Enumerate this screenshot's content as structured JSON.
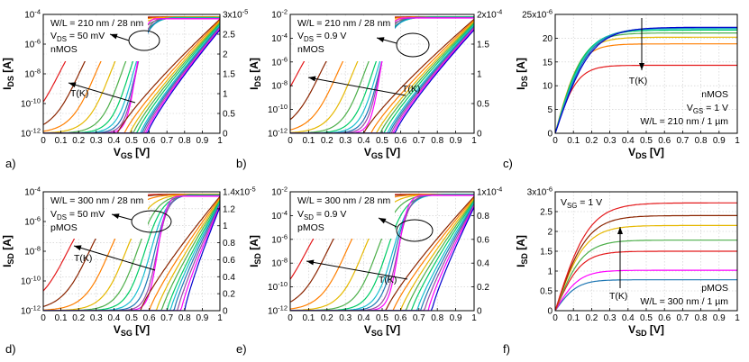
{
  "chart_data": [
    {
      "panel": "a)",
      "type": "line",
      "xlabel": "V_GS [V]",
      "ylabel_left": "I_DS [A]",
      "left_ticks": [
        "10^-4",
        "10^-6",
        "10^-8",
        "10^-10",
        "10^-12"
      ],
      "right_ticks": [
        "3x10^-5",
        "2.5",
        "2",
        "1.5",
        "1",
        "0.5",
        "0"
      ],
      "xlim": [
        0,
        1
      ],
      "x_ticks": [
        "0",
        "0.1",
        "0.2",
        "0.3",
        "0.4",
        "0.5",
        "0.6",
        "0.7",
        "0.8",
        "0.9",
        "1"
      ],
      "annotations": [
        "W/L = 210 nm / 28 nm",
        "V_DS = 50 mV",
        "nMOS",
        "T(K)"
      ],
      "log_curves_vth": [
        0.0,
        0.12,
        0.22,
        0.31,
        0.38,
        0.43,
        0.46,
        0.48,
        0.49,
        0.495
      ],
      "lin_curves_vth": [
        0.42,
        0.46,
        0.49,
        0.51,
        0.53,
        0.55,
        0.56,
        0.57,
        0.58,
        0.59
      ]
    },
    {
      "panel": "b)",
      "type": "line",
      "xlabel": "V_GS [V]",
      "ylabel_left": "I_DS [A]",
      "left_ticks": [
        "10^-2",
        "10^-4",
        "10^-6",
        "10^-8",
        "10^-10",
        "10^-12"
      ],
      "right_ticks": [
        "2x10^-4",
        "1.5",
        "1",
        "0.5",
        "0"
      ],
      "xlim": [
        0,
        1
      ],
      "x_ticks": [
        "0",
        "0.1",
        "0.2",
        "0.3",
        "0.4",
        "0.5",
        "0.6",
        "0.7",
        "0.8",
        "0.9",
        "1"
      ],
      "annotations": [
        "W/L = 210 nm / 28 nm",
        "V_DS = 0.9 V",
        "nMOS",
        "T(K)"
      ],
      "log_curves_vth": [
        -0.05,
        0.08,
        0.18,
        0.27,
        0.34,
        0.39,
        0.42,
        0.44,
        0.45,
        0.46
      ],
      "lin_curves_vth": [
        0.4,
        0.44,
        0.47,
        0.49,
        0.51,
        0.53,
        0.54,
        0.55,
        0.56,
        0.57
      ]
    },
    {
      "panel": "c)",
      "type": "line",
      "xlabel": "V_DS [V]",
      "ylabel_left": "I_DS [A]",
      "left_ticks": [
        "25x10^-6",
        "20",
        "15",
        "10",
        "5",
        "0"
      ],
      "ylim": [
        0,
        25
      ],
      "xlim": [
        0,
        1
      ],
      "x_ticks": [
        "0",
        "0.1",
        "0.2",
        "0.3",
        "0.4",
        "0.5",
        "0.6",
        "0.7",
        "0.8",
        "0.9",
        "1"
      ],
      "annotations": [
        "nMOS",
        "V_GS = 1 V",
        "W/L = 210 nm / 1 µm",
        "T(K)"
      ],
      "saturation_currents": [
        14.3,
        18.8,
        20.2,
        21.1,
        21.7,
        22.0,
        22.2,
        22.3
      ]
    },
    {
      "panel": "d)",
      "type": "line",
      "xlabel": "V_SG [V]",
      "ylabel_left": "I_SD [A]",
      "left_ticks": [
        "10^-4",
        "10^-6",
        "10^-8",
        "10^-10",
        "10^-12"
      ],
      "right_ticks": [
        "1.4x10^-5",
        "1.2",
        "1",
        "0.8",
        "0.6",
        "0.4",
        "0.2",
        "0"
      ],
      "xlim": [
        0,
        1
      ],
      "x_ticks": [
        "0",
        "0.1",
        "0.2",
        "0.3",
        "0.4",
        "0.5",
        "0.6",
        "0.7",
        "0.8",
        "0.9",
        "1"
      ],
      "annotations": [
        "W/L = 300 nm / 28 nm",
        "V_DS = 50 mV",
        "pMOS",
        "T(K)"
      ],
      "log_curves_vth": [
        0.05,
        0.18,
        0.3,
        0.4,
        0.47,
        0.52,
        0.56,
        0.59,
        0.61,
        0.62
      ],
      "lin_curves_vth": [
        0.55,
        0.6,
        0.64,
        0.67,
        0.7,
        0.72,
        0.74,
        0.76,
        0.78,
        0.8
      ]
    },
    {
      "panel": "e)",
      "type": "line",
      "xlabel": "V_SG [V]",
      "ylabel_left": "I_SD [A]",
      "left_ticks": [
        "10^-2",
        "10^-4",
        "10^-6",
        "10^-8",
        "10^-10",
        "10^-12"
      ],
      "right_ticks": [
        "1x10^-4",
        "0.8",
        "0.6",
        "0.4",
        "0.2",
        "0"
      ],
      "xlim": [
        0,
        1
      ],
      "x_ticks": [
        "0",
        "0.1",
        "0.2",
        "0.3",
        "0.4",
        "0.5",
        "0.6",
        "0.7",
        "0.8",
        "0.9",
        "1"
      ],
      "annotations": [
        "W/L = 300 nm / 28 nm",
        "V_SD = 0.9 V",
        "pMOS",
        "T(K)"
      ],
      "log_curves_vth": [
        0.0,
        0.12,
        0.23,
        0.33,
        0.41,
        0.47,
        0.51,
        0.53,
        0.55,
        0.56
      ],
      "lin_curves_vth": [
        0.52,
        0.56,
        0.6,
        0.63,
        0.66,
        0.69,
        0.71,
        0.73,
        0.75,
        0.77
      ]
    },
    {
      "panel": "f)",
      "type": "line",
      "xlabel": "V_SD [V]",
      "ylabel_left": "I_SD [A]",
      "left_ticks": [
        "3x10^-6",
        "2.5",
        "2",
        "1.5",
        "1",
        "0.5",
        "0"
      ],
      "ylim": [
        0,
        3
      ],
      "xlim": [
        0,
        1
      ],
      "x_ticks": [
        "0",
        "0.1",
        "0.2",
        "0.3",
        "0.4",
        "0.5",
        "0.6",
        "0.7",
        "0.8",
        "0.9",
        "1"
      ],
      "annotations": [
        "V_SG = 1 V",
        "pMOS",
        "W/L = 300 nm / 1 µm",
        "T(K)"
      ],
      "saturation_currents": [
        0.78,
        1.02,
        1.5,
        1.78,
        2.15,
        2.4,
        2.72
      ]
    }
  ],
  "colors": [
    "#e41a1c",
    "#8b2500",
    "#ff7f00",
    "#e6b800",
    "#4daf4a",
    "#00cc66",
    "#17becf",
    "#1f77b4",
    "#984ea3",
    "#ff00ff",
    "#0000cd"
  ]
}
